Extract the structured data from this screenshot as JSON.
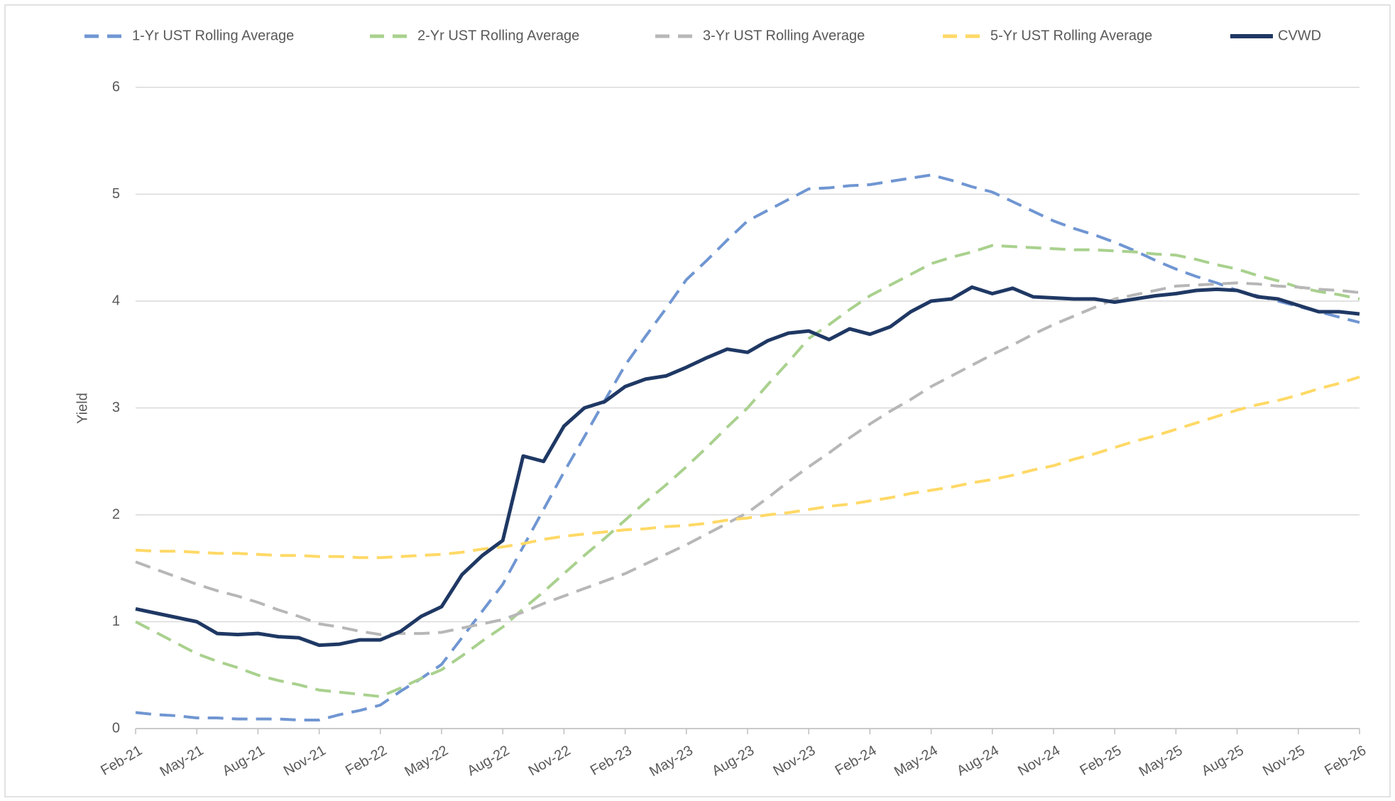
{
  "chart_data": {
    "type": "line",
    "y_label": "Yield",
    "categories": [
      "Feb-21",
      null,
      null,
      "May-21",
      null,
      null,
      "Aug-21",
      null,
      null,
      "Nov-21",
      null,
      null,
      "Feb-22",
      null,
      null,
      "May-22",
      null,
      null,
      "Aug-22",
      null,
      null,
      "Nov-22",
      null,
      null,
      "Feb-23",
      null,
      null,
      "May-23",
      null,
      null,
      "Aug-23",
      null,
      null,
      "Nov-23",
      null,
      null,
      "Feb-24",
      null,
      null,
      "May-24",
      null,
      null,
      "Aug-24",
      null,
      null,
      "Nov-24",
      null,
      null,
      "Feb-25",
      null,
      null,
      "May-25",
      null,
      null,
      "Aug-25",
      null,
      null,
      "Nov-25",
      null,
      null,
      "Feb-26"
    ],
    "ylim": [
      0,
      6
    ],
    "yticks": [
      0,
      1,
      2,
      3,
      4,
      5,
      6
    ],
    "grid": true,
    "legend": "top",
    "series": [
      {
        "name": "1-Yr UST Rolling Average",
        "color": "#7096d2",
        "dashed": true,
        "values": [
          0.15,
          0.13,
          0.12,
          0.1,
          0.1,
          0.09,
          0.09,
          0.09,
          0.08,
          0.08,
          0.13,
          0.17,
          0.22,
          0.35,
          0.47,
          0.6,
          0.85,
          1.1,
          1.35,
          1.7,
          2.05,
          2.4,
          2.73,
          3.07,
          3.4,
          3.67,
          3.93,
          4.2,
          4.38,
          4.57,
          4.75,
          4.85,
          4.95,
          5.05,
          5.06,
          5.08,
          5.09,
          5.12,
          5.15,
          5.18,
          5.13,
          5.07,
          5.02,
          4.93,
          4.84,
          4.75,
          4.68,
          4.62,
          4.55,
          4.47,
          4.38,
          4.3,
          4.23,
          4.17,
          4.1,
          4.05,
          4.0,
          3.95,
          3.9,
          3.85,
          3.8
        ]
      },
      {
        "name": "2-Yr UST Rolling Average",
        "color": "#a9d18e",
        "dashed": true,
        "values": [
          1.0,
          0.9,
          0.8,
          0.7,
          0.63,
          0.57,
          0.5,
          0.45,
          0.41,
          0.36,
          0.34,
          0.32,
          0.3,
          0.38,
          0.47,
          0.55,
          0.68,
          0.82,
          0.95,
          1.12,
          1.28,
          1.45,
          1.62,
          1.78,
          1.95,
          2.12,
          2.28,
          2.45,
          2.63,
          2.82,
          3.0,
          3.22,
          3.43,
          3.65,
          3.78,
          3.92,
          4.05,
          4.15,
          4.25,
          4.35,
          4.41,
          4.46,
          4.52,
          4.51,
          4.5,
          4.49,
          4.48,
          4.48,
          4.47,
          4.46,
          4.44,
          4.43,
          4.39,
          4.34,
          4.3,
          4.24,
          4.19,
          4.13,
          4.09,
          4.06,
          4.02
        ]
      },
      {
        "name": "3-Yr UST Rolling Average",
        "color": "#b7b7b7",
        "dashed": true,
        "values": [
          1.56,
          1.49,
          1.42,
          1.35,
          1.29,
          1.24,
          1.18,
          1.11,
          1.05,
          0.98,
          0.95,
          0.91,
          0.88,
          0.89,
          0.89,
          0.9,
          0.94,
          0.98,
          1.02,
          1.09,
          1.17,
          1.24,
          1.31,
          1.38,
          1.45,
          1.54,
          1.63,
          1.72,
          1.82,
          1.92,
          2.02,
          2.16,
          2.31,
          2.45,
          2.58,
          2.72,
          2.85,
          2.97,
          3.08,
          3.2,
          3.3,
          3.4,
          3.5,
          3.59,
          3.69,
          3.78,
          3.86,
          3.94,
          4.02,
          4.06,
          4.1,
          4.14,
          4.15,
          4.16,
          4.17,
          4.16,
          4.14,
          4.13,
          4.11,
          4.1,
          4.08
        ]
      },
      {
        "name": "5-Yr UST Rolling Average",
        "color": "#ffd966",
        "dashed": true,
        "values": [
          1.67,
          1.66,
          1.66,
          1.65,
          1.64,
          1.64,
          1.63,
          1.62,
          1.62,
          1.61,
          1.61,
          1.6,
          1.6,
          1.61,
          1.62,
          1.63,
          1.65,
          1.68,
          1.7,
          1.73,
          1.77,
          1.8,
          1.82,
          1.84,
          1.86,
          1.87,
          1.89,
          1.9,
          1.92,
          1.95,
          1.97,
          2.0,
          2.02,
          2.05,
          2.08,
          2.1,
          2.13,
          2.16,
          2.2,
          2.23,
          2.26,
          2.3,
          2.33,
          2.37,
          2.42,
          2.46,
          2.52,
          2.57,
          2.63,
          2.69,
          2.74,
          2.8,
          2.86,
          2.92,
          2.98,
          3.03,
          3.07,
          3.12,
          3.18,
          3.23,
          3.29
        ]
      },
      {
        "name": "CVWD",
        "color": "#1f3864",
        "dashed": false,
        "values": [
          1.12,
          1.08,
          1.04,
          1.0,
          0.89,
          0.88,
          0.89,
          0.86,
          0.85,
          0.78,
          0.79,
          0.83,
          0.83,
          0.91,
          1.05,
          1.14,
          1.44,
          1.62,
          1.76,
          2.55,
          2.5,
          2.83,
          3.0,
          3.06,
          3.2,
          3.27,
          3.3,
          3.38,
          3.47,
          3.55,
          3.52,
          3.63,
          3.7,
          3.72,
          3.64,
          3.74,
          3.69,
          3.76,
          3.9,
          4.0,
          4.02,
          4.13,
          4.07,
          4.12,
          4.04,
          4.03,
          4.02,
          4.02,
          3.99,
          4.02,
          4.05,
          4.07,
          4.1,
          4.11,
          4.1,
          4.04,
          4.02,
          3.96,
          3.9,
          3.9,
          3.88
        ]
      }
    ]
  }
}
